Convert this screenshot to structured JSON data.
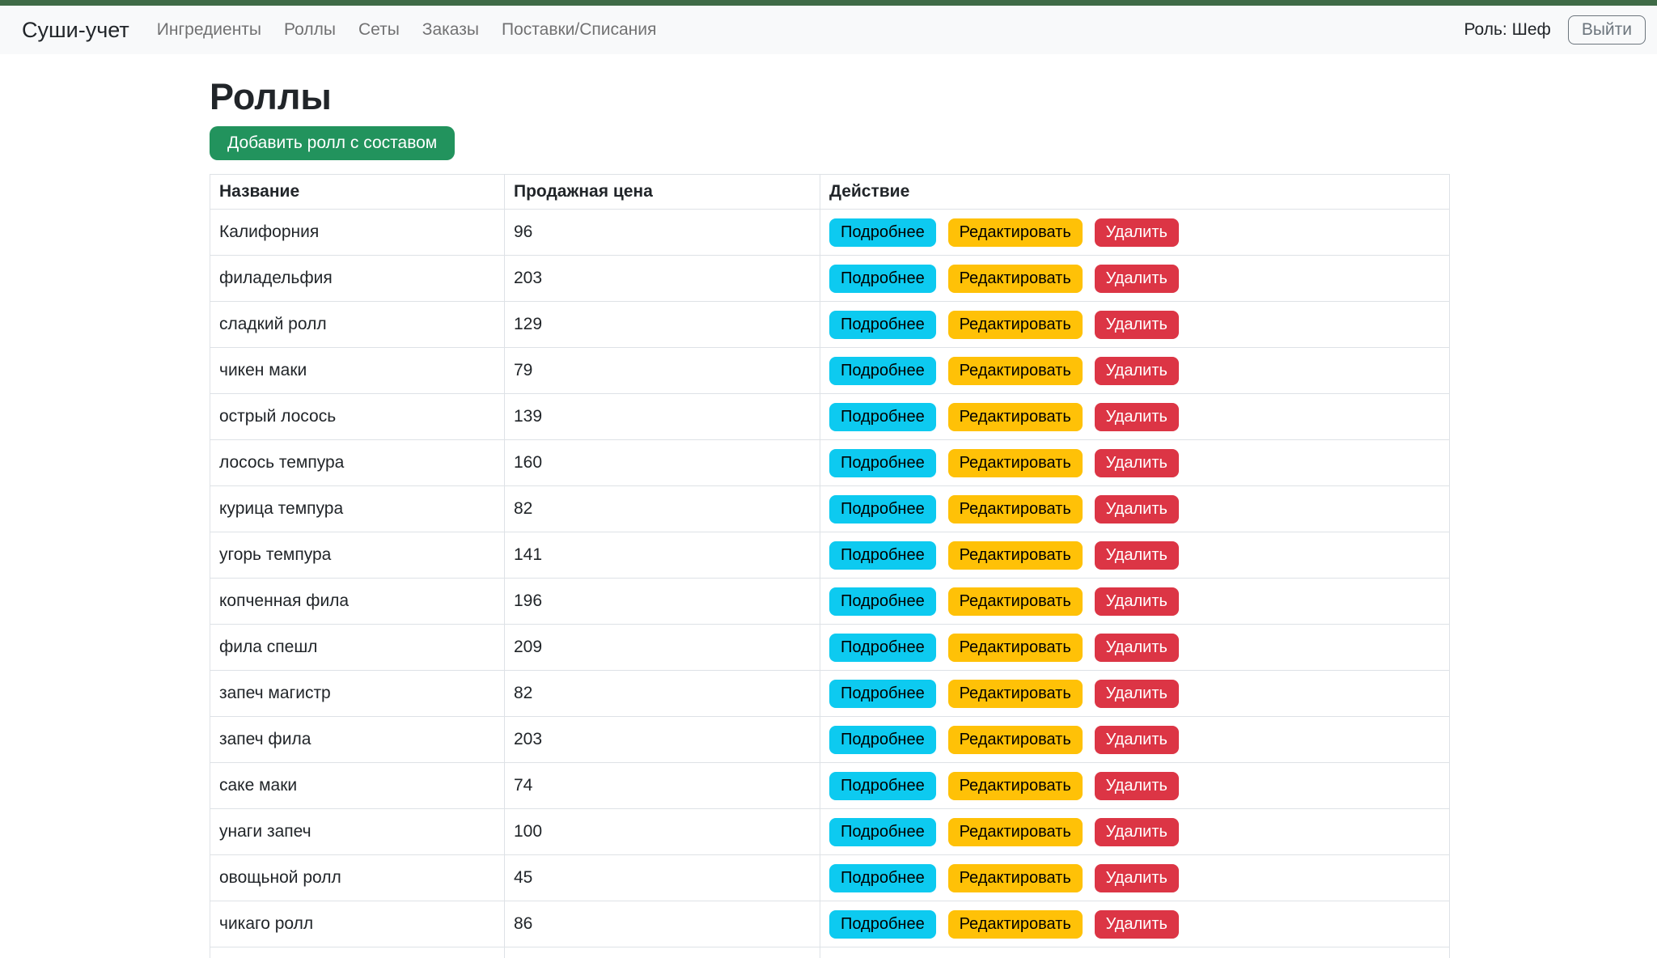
{
  "navbar": {
    "brand": "Суши-учет",
    "items": [
      "Ингредиенты",
      "Роллы",
      "Сеты",
      "Заказы",
      "Поставки/Списания"
    ],
    "role_label": "Роль: Шеф",
    "logout_label": "Выйти"
  },
  "page": {
    "title": "Роллы",
    "add_button_label": "Добавить ролл с составом"
  },
  "table": {
    "headers": [
      "Название",
      "Продажная цена",
      "Действие"
    ],
    "actions": {
      "details": "Подробнее",
      "edit": "Редактировать",
      "delete": "Удалить"
    },
    "rows": [
      {
        "name": "Калифорния",
        "price": "96"
      },
      {
        "name": "филадельфия",
        "price": "203"
      },
      {
        "name": "сладкий ролл",
        "price": "129"
      },
      {
        "name": "чикен маки",
        "price": "79"
      },
      {
        "name": "острый лосось",
        "price": "139"
      },
      {
        "name": "лосось темпура",
        "price": "160"
      },
      {
        "name": "курица темпура",
        "price": "82"
      },
      {
        "name": "угорь темпура",
        "price": "141"
      },
      {
        "name": "копченная фила",
        "price": "196"
      },
      {
        "name": "фила спешл",
        "price": "209"
      },
      {
        "name": "запеч магистр",
        "price": "82"
      },
      {
        "name": "запеч фила",
        "price": "203"
      },
      {
        "name": "саке маки",
        "price": "74"
      },
      {
        "name": "унаги запеч",
        "price": "100"
      },
      {
        "name": "овощьной ролл",
        "price": "45"
      },
      {
        "name": "чикаго ролл",
        "price": "86"
      }
    ]
  },
  "colors": {
    "top_strip": "#3f6b47",
    "navbar_bg": "#f8f9fa",
    "add_button": "#22935d",
    "details_button": "#0dcaf0",
    "edit_button": "#ffc107",
    "delete_button": "#dc3545",
    "table_border": "#dee2e6"
  }
}
